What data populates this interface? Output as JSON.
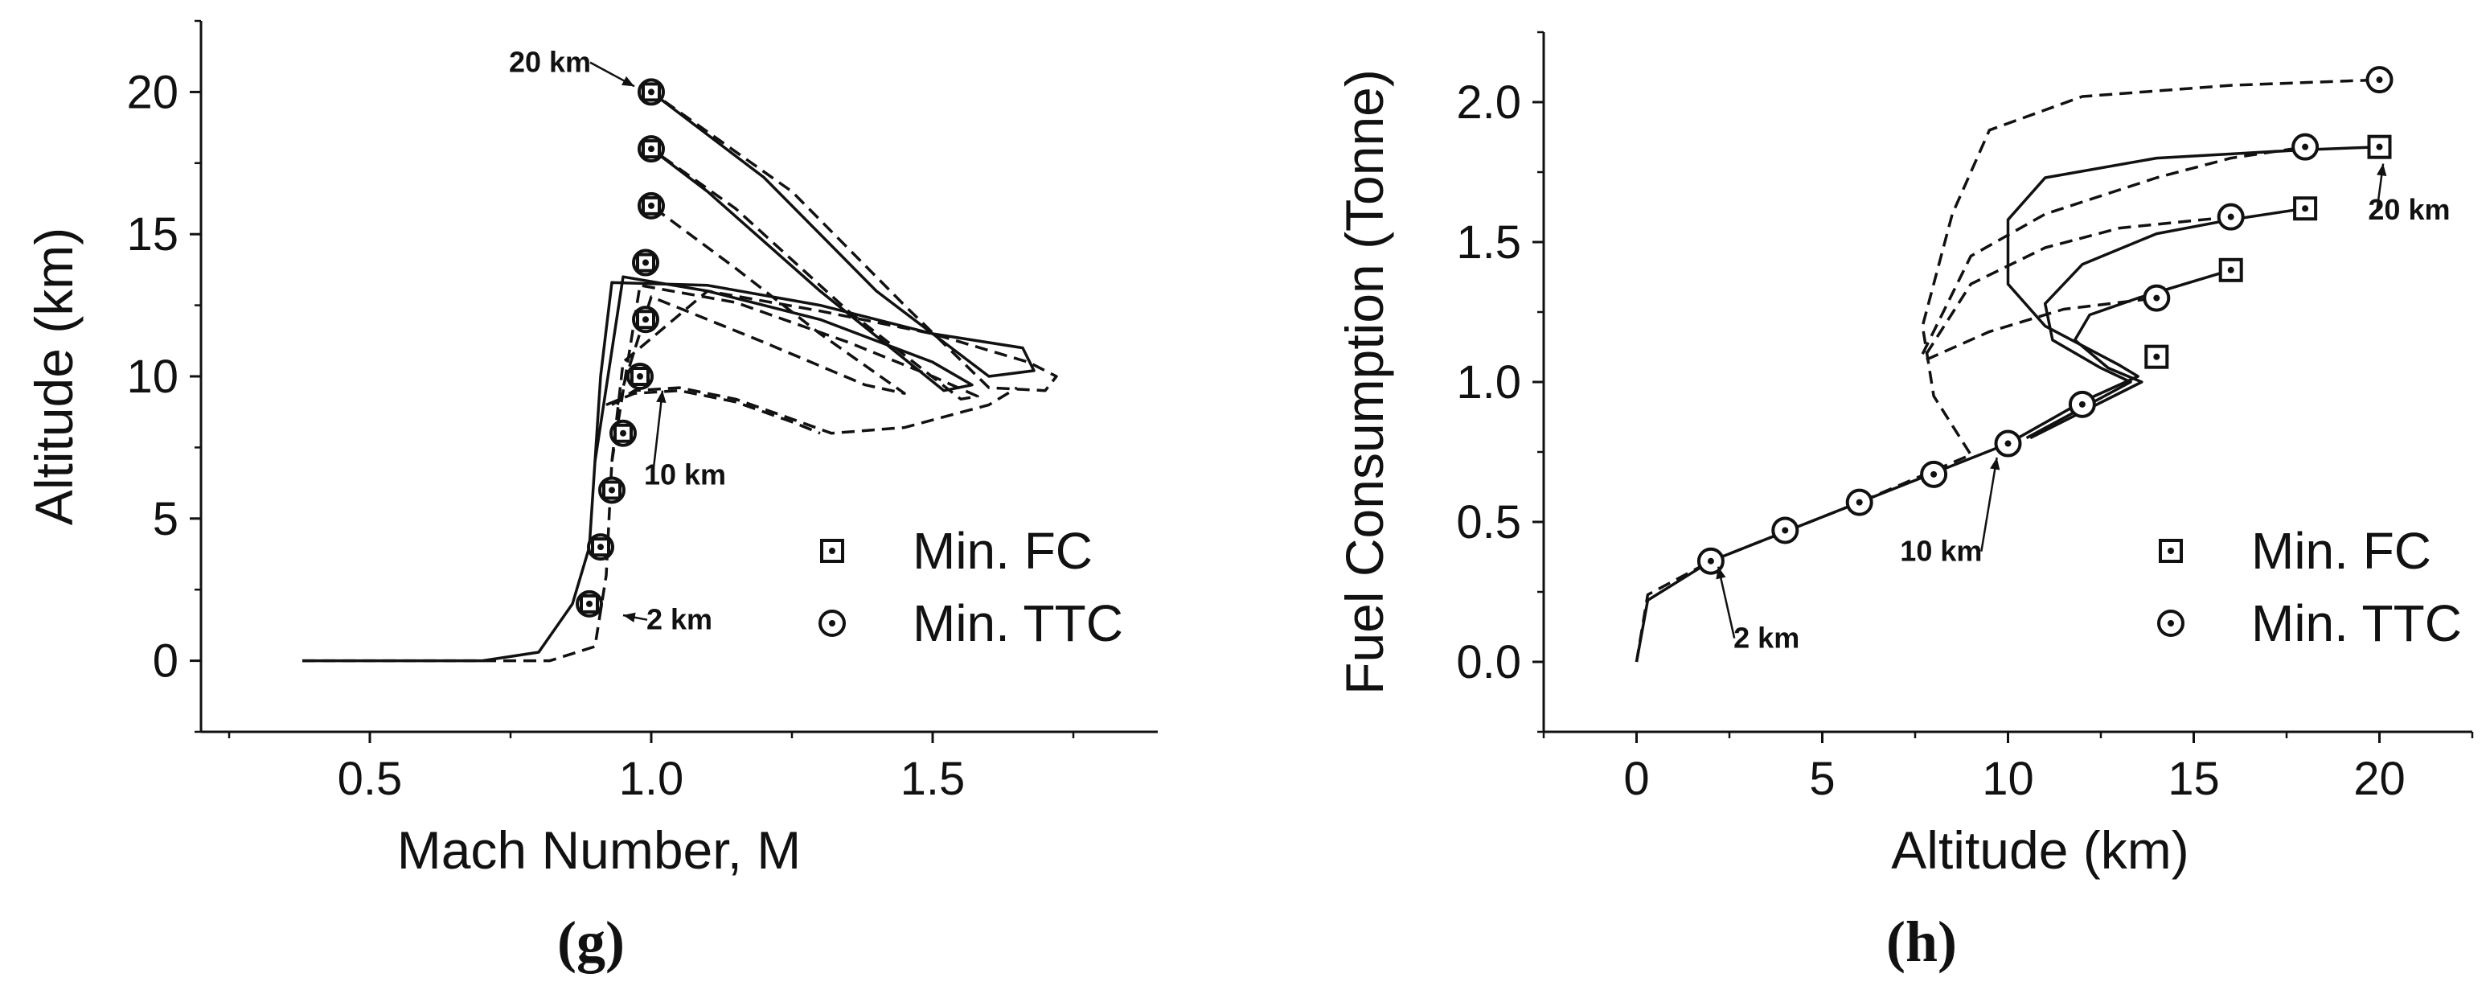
{
  "chart_data": [
    {
      "type": "line",
      "panel_label": "(g)",
      "xlabel": "Mach Number, M",
      "ylabel": "Altitude (km)",
      "xlim": [
        0.2,
        1.9
      ],
      "ylim": [
        -2.5,
        22.5
      ],
      "xticks": [
        0.5,
        1.0,
        1.5
      ],
      "xtick_labels": [
        "0.5",
        "1.0",
        "1.5"
      ],
      "yticks": [
        0,
        5,
        10,
        15,
        20
      ],
      "ytick_labels": [
        "0",
        "5",
        "10",
        "15",
        "20"
      ],
      "legend": {
        "position": "right",
        "entries": [
          {
            "marker": "square-dot",
            "label": "Min. FC"
          },
          {
            "marker": "circle-dot",
            "label": "Min. TTC"
          }
        ]
      },
      "annotations": [
        {
          "text": "20 km",
          "x": 0.82,
          "y": 20.7,
          "arrow_to": [
            0.97,
            20.2
          ]
        },
        {
          "text": "10 km",
          "x": 1.06,
          "y": 6.2,
          "arrow_to": [
            1.02,
            9.5
          ]
        },
        {
          "text": "2 km",
          "x": 1.05,
          "y": 1.1,
          "arrow_to": [
            0.95,
            1.6
          ]
        }
      ],
      "markers": {
        "min_fc": [
          [
            1.0,
            20
          ],
          [
            1.0,
            18
          ],
          [
            1.0,
            16
          ],
          [
            0.99,
            14
          ],
          [
            0.99,
            12
          ],
          [
            0.98,
            10
          ],
          [
            0.95,
            8
          ],
          [
            0.93,
            6
          ],
          [
            0.91,
            4
          ],
          [
            0.89,
            2
          ]
        ],
        "min_ttc": [
          [
            1.0,
            20
          ],
          [
            1.0,
            18
          ],
          [
            1.0,
            16
          ],
          [
            0.99,
            14
          ],
          [
            0.99,
            12
          ],
          [
            0.98,
            10
          ],
          [
            0.95,
            8
          ],
          [
            0.93,
            6
          ],
          [
            0.91,
            4
          ],
          [
            0.89,
            2
          ]
        ]
      },
      "series": [
        {
          "name": "Min. FC 20 km",
          "style": "solid",
          "x": [
            0.38,
            0.6,
            0.7,
            0.8,
            0.86,
            0.89,
            0.9,
            0.91,
            0.93,
            1.1,
            1.3,
            1.5,
            1.66,
            1.68,
            1.6,
            1.4,
            1.2,
            1.0
          ],
          "y": [
            0,
            0,
            0,
            0.3,
            2,
            4,
            7,
            10,
            13.3,
            13.2,
            12.5,
            11.5,
            11,
            10.2,
            10,
            13,
            17,
            20
          ]
        },
        {
          "name": "Min. TTC 20 km",
          "style": "dashed",
          "x": [
            0.38,
            0.7,
            0.82,
            0.9,
            0.92,
            0.93,
            0.95,
            1.1,
            1.3,
            1.5,
            1.67,
            1.72,
            1.7,
            1.6,
            1.45,
            1.25,
            1.0
          ],
          "y": [
            0,
            0,
            0,
            0.5,
            3,
            7,
            10.5,
            13,
            12.3,
            11.5,
            10.5,
            10,
            9.5,
            9.6,
            12.5,
            16.5,
            20
          ]
        },
        {
          "name": "Min. FC 18 km",
          "style": "solid",
          "x": [
            0.9,
            0.95,
            1.1,
            1.3,
            1.5,
            1.57,
            1.52,
            1.3,
            1.1,
            1.0
          ],
          "y": [
            7,
            13.5,
            13,
            12,
            10.5,
            9.7,
            9.5,
            13,
            16.5,
            18
          ]
        },
        {
          "name": "Min. TTC 18 km",
          "style": "dashed",
          "x": [
            0.93,
            0.98,
            1.15,
            1.35,
            1.5,
            1.58,
            1.55,
            1.35,
            1.15,
            1.0
          ],
          "y": [
            7,
            13.2,
            12.6,
            11.2,
            10,
            9.3,
            9.2,
            12.3,
            15.9,
            18
          ]
        },
        {
          "name": "Min. TTC 16 km",
          "style": "dashed",
          "x": [
            0.94,
            1.0,
            1.2,
            1.38,
            1.45,
            1.3,
            1.15,
            1.0
          ],
          "y": [
            9,
            12.8,
            11.2,
            9.7,
            9.4,
            11.5,
            13.8,
            16
          ]
        },
        {
          "name": "Min. TTC 10 km",
          "style": "dashed",
          "x": [
            0.93,
            0.97,
            1.05,
            1.15,
            1.25,
            1.32,
            1.45,
            1.6,
            1.65
          ],
          "y": [
            9,
            9.5,
            9.6,
            9.2,
            8.5,
            8,
            8.2,
            9,
            9.6
          ]
        },
        {
          "name": "Min. FC 10 km",
          "style": "dashed",
          "x": [
            0.92,
            0.97,
            1.05,
            1.15,
            1.25,
            1.3
          ],
          "y": [
            9,
            9.4,
            9.5,
            9.1,
            8.4,
            8
          ]
        }
      ]
    },
    {
      "type": "line",
      "panel_label": "(h)",
      "xlabel": "Altitude (km)",
      "ylabel": "Fuel Consumption (Tonne)",
      "xlim": [
        -2.5,
        22.5
      ],
      "ylim": [
        -0.25,
        2.25
      ],
      "xticks": [
        0,
        5,
        10,
        15,
        20
      ],
      "xtick_labels": [
        "0",
        "5",
        "10",
        "15",
        "20"
      ],
      "yticks": [
        0.0,
        0.5,
        1.0,
        1.5,
        2.0
      ],
      "ytick_labels": [
        "0.0",
        "0.5",
        "1.0",
        "1.5",
        "2.0"
      ],
      "legend": {
        "position": "bottom-right",
        "entries": [
          {
            "marker": "square-dot",
            "label": "Min. FC"
          },
          {
            "marker": "circle-dot",
            "label": "Min. TTC"
          }
        ]
      },
      "annotations": [
        {
          "text": "20 km",
          "x": 20.8,
          "y": 1.58,
          "arrow_to": [
            20.1,
            1.78
          ]
        },
        {
          "text": "10 km",
          "x": 8.2,
          "y": 0.36,
          "arrow_to": [
            9.7,
            0.73
          ]
        },
        {
          "text": "2 km",
          "x": 3.5,
          "y": 0.05,
          "arrow_to": [
            2.2,
            0.34
          ]
        }
      ],
      "markers": {
        "min_fc": [
          [
            20,
            1.84
          ],
          [
            18,
            1.62
          ],
          [
            16,
            1.4
          ],
          [
            14,
            1.09
          ]
        ],
        "min_ttc": [
          [
            20,
            2.08
          ],
          [
            18,
            1.84
          ],
          [
            16,
            1.59
          ],
          [
            14,
            1.3
          ],
          [
            12,
            0.92
          ],
          [
            10,
            0.78
          ],
          [
            8,
            0.67
          ],
          [
            6,
            0.57
          ],
          [
            4,
            0.47
          ],
          [
            2,
            0.36
          ]
        ]
      },
      "series": [
        {
          "name": "Min. FC 20 km",
          "style": "solid",
          "x": [
            0,
            0.3,
            2,
            6,
            10,
            12,
            13.5,
            13,
            11,
            10,
            10,
            11,
            14,
            18,
            20
          ],
          "y": [
            0,
            0.22,
            0.36,
            0.57,
            0.78,
            0.93,
            1.02,
            1.06,
            1.2,
            1.35,
            1.58,
            1.73,
            1.8,
            1.83,
            1.84
          ]
        },
        {
          "name": "Min. TTC 20 km",
          "style": "dashed",
          "x": [
            0,
            0.3,
            2,
            6,
            9,
            8,
            7.7,
            8.5,
            9.5,
            12,
            16,
            20
          ],
          "y": [
            0,
            0.24,
            0.36,
            0.57,
            0.74,
            0.95,
            1.2,
            1.6,
            1.9,
            2.02,
            2.06,
            2.08
          ]
        },
        {
          "name": "Min. FC 18 km",
          "style": "solid",
          "x": [
            10.5,
            13.3,
            12.5,
            11.2,
            11,
            12,
            14,
            16,
            18
          ],
          "y": [
            0.8,
            1.0,
            1.05,
            1.15,
            1.28,
            1.42,
            1.53,
            1.58,
            1.62
          ]
        },
        {
          "name": "Min. TTC 18 km",
          "style": "dashed",
          "x": [
            7.7,
            9,
            11,
            14,
            16,
            18
          ],
          "y": [
            1.1,
            1.45,
            1.6,
            1.73,
            1.8,
            1.84
          ]
        },
        {
          "name": "Min. FC 16 km",
          "style": "solid",
          "x": [
            10.6,
            13.6,
            12.7,
            11.8,
            12.2,
            13.5,
            16
          ],
          "y": [
            0.8,
            1.0,
            1.05,
            1.15,
            1.24,
            1.3,
            1.4
          ]
        },
        {
          "name": "Min. TTC 16 km",
          "style": "dashed",
          "x": [
            7.8,
            9,
            11,
            13,
            16
          ],
          "y": [
            1.1,
            1.35,
            1.48,
            1.55,
            1.59
          ]
        },
        {
          "name": "Min. TTC 14 km",
          "style": "dashed",
          "x": [
            7.8,
            9.5,
            11.5,
            14
          ],
          "y": [
            1.08,
            1.18,
            1.26,
            1.3
          ]
        }
      ]
    }
  ]
}
